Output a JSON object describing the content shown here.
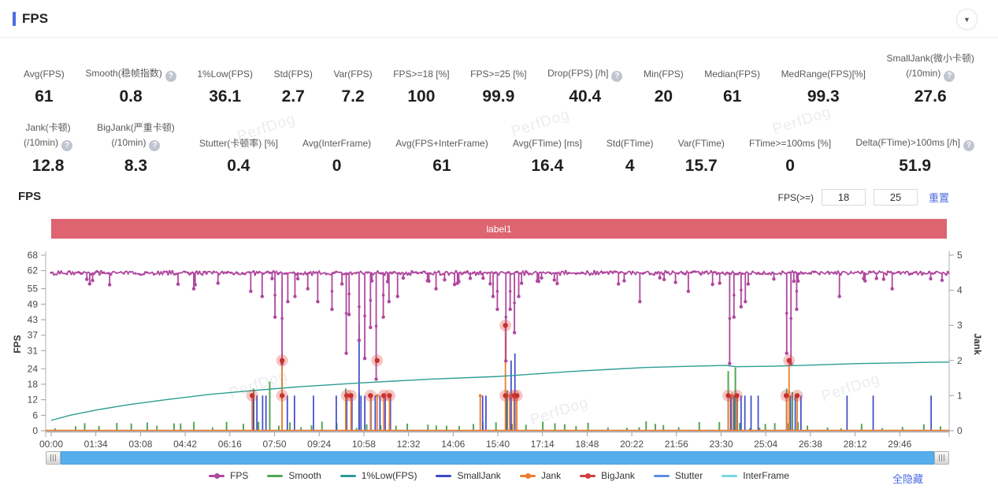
{
  "header": {
    "title": "FPS"
  },
  "watermark": "PerfDog",
  "stats": {
    "row1": [
      {
        "label": "Avg(FPS)",
        "value": "61"
      },
      {
        "label": "Smooth(稳帧指数)",
        "help": true,
        "value": "0.8"
      },
      {
        "label": "1%Low(FPS)",
        "value": "36.1"
      },
      {
        "label": "Std(FPS)",
        "value": "2.7"
      },
      {
        "label": "Var(FPS)",
        "value": "7.2"
      },
      {
        "label": "FPS>=18 [%]",
        "value": "100"
      },
      {
        "label": "FPS>=25 [%]",
        "value": "99.9"
      },
      {
        "label": "Drop(FPS) [/h]",
        "help": true,
        "value": "40.4"
      },
      {
        "label": "Min(FPS)",
        "value": "20"
      },
      {
        "label": "Median(FPS)",
        "value": "61"
      },
      {
        "label": "MedRange(FPS)[%]",
        "value": "99.3"
      },
      {
        "label": "SmallJank(微小卡顿)",
        "label2": "(/10min)",
        "help": true,
        "value": "27.6"
      }
    ],
    "row2": [
      {
        "label": "Jank(卡顿)",
        "label2": "(/10min)",
        "help": true,
        "value": "12.8"
      },
      {
        "label": "BigJank(严重卡顿)",
        "label2": "(/10min)",
        "help": true,
        "value": "8.3"
      },
      {
        "label": "Stutter(卡顿率) [%]",
        "value": "0.4"
      },
      {
        "label": "Avg(InterFrame)",
        "value": "0"
      },
      {
        "label": "Avg(FPS+InterFrame)",
        "value": "61"
      },
      {
        "label": "Avg(FTime) [ms]",
        "value": "16.4"
      },
      {
        "label": "Std(FTime)",
        "value": "4"
      },
      {
        "label": "Var(FTime)",
        "value": "15.7"
      },
      {
        "label": "FTime>=100ms [%]",
        "value": "0"
      },
      {
        "label": "Delta(FTime)>100ms [/h]",
        "help": true,
        "value": "51.9"
      }
    ]
  },
  "chart_section": {
    "title": "FPS",
    "fps_filter_label": "FPS(>=)",
    "threshold1": "18",
    "threshold2": "25",
    "reset_label": "重置",
    "hide_all_label": "全隐藏"
  },
  "chart_data": {
    "type": "line",
    "title": "FPS",
    "banner": "label1",
    "legend_position": "bottom",
    "x_axis": {
      "unit": "mm:ss",
      "domain_seconds": [
        0,
        1890
      ],
      "ticks": [
        {
          "t": 0,
          "label": "00:00"
        },
        {
          "t": 94,
          "label": "01:34"
        },
        {
          "t": 188,
          "label": "03:08"
        },
        {
          "t": 282,
          "label": "04:42"
        },
        {
          "t": 376,
          "label": "06:16"
        },
        {
          "t": 470,
          "label": "07:50"
        },
        {
          "t": 564,
          "label": "09:24"
        },
        {
          "t": 658,
          "label": "10:58"
        },
        {
          "t": 752,
          "label": "12:32"
        },
        {
          "t": 846,
          "label": "14:06"
        },
        {
          "t": 940,
          "label": "15:40"
        },
        {
          "t": 1034,
          "label": "17:14"
        },
        {
          "t": 1128,
          "label": "18:48"
        },
        {
          "t": 1222,
          "label": "20:22"
        },
        {
          "t": 1316,
          "label": "21:56"
        },
        {
          "t": 1410,
          "label": "23:30"
        },
        {
          "t": 1504,
          "label": "25:04"
        },
        {
          "t": 1598,
          "label": "26:38"
        },
        {
          "t": 1692,
          "label": "28:12"
        },
        {
          "t": 1786,
          "label": "29:46"
        }
      ]
    },
    "y_left": {
      "label": "FPS",
      "range": [
        0,
        68
      ],
      "ticks": [
        0,
        6,
        12,
        18,
        24,
        31,
        37,
        43,
        49,
        55,
        62,
        68
      ]
    },
    "y_right": {
      "label": "Jank",
      "range": [
        0,
        5
      ],
      "ticks": [
        0,
        1,
        2,
        3,
        4,
        5
      ]
    },
    "series": [
      {
        "name": "FPS",
        "color": "#b0479e",
        "axis": "left",
        "style": "line-dots",
        "baseline": 61,
        "dips": [
          [
            300,
            55
          ],
          [
            420,
            54
          ],
          [
            445,
            52
          ],
          [
            470,
            44
          ],
          [
            486,
            26
          ],
          [
            497,
            50
          ],
          [
            512,
            52
          ],
          [
            540,
            55
          ],
          [
            560,
            50
          ],
          [
            590,
            47
          ],
          [
            620,
            30
          ],
          [
            628,
            45
          ],
          [
            648,
            35
          ],
          [
            660,
            28
          ],
          [
            673,
            40
          ],
          [
            683,
            20
          ],
          [
            700,
            44
          ],
          [
            712,
            50
          ],
          [
            730,
            52
          ],
          [
            810,
            55
          ],
          [
            930,
            52
          ],
          [
            940,
            47
          ],
          [
            956,
            27
          ],
          [
            965,
            47
          ],
          [
            976,
            38
          ],
          [
            985,
            52
          ],
          [
            1240,
            50
          ],
          [
            1340,
            54
          ],
          [
            1428,
            26
          ],
          [
            1437,
            44
          ],
          [
            1452,
            48
          ],
          [
            1460,
            50
          ],
          [
            1548,
            30
          ],
          [
            1556,
            26
          ],
          [
            1570,
            47
          ],
          [
            1659,
            52
          ],
          [
            1770,
            55
          ]
        ]
      },
      {
        "name": "Smooth",
        "color": "#53a653",
        "axis": "right",
        "style": "bars",
        "spikes": [
          [
            426,
            1.2
          ],
          [
            460,
            1.4
          ],
          [
            620,
            1.2
          ],
          [
            648,
            1.1
          ],
          [
            960,
            1.15
          ],
          [
            1425,
            1.7
          ],
          [
            1440,
            1.8
          ],
          [
            1548,
            1.2
          ],
          [
            1560,
            1.1
          ]
        ]
      },
      {
        "name": "1%Low(FPS)",
        "color": "#2e9d94",
        "axis": "left",
        "style": "line",
        "points": [
          [
            0,
            4
          ],
          [
            40,
            6
          ],
          [
            94,
            8
          ],
          [
            160,
            10
          ],
          [
            240,
            12
          ],
          [
            330,
            14
          ],
          [
            420,
            15.5
          ],
          [
            520,
            17
          ],
          [
            650,
            18.5
          ],
          [
            800,
            20
          ],
          [
            940,
            21
          ],
          [
            1100,
            23
          ],
          [
            1250,
            24.5
          ],
          [
            1350,
            25
          ],
          [
            1420,
            25.3
          ],
          [
            1440,
            24.8
          ],
          [
            1520,
            25
          ],
          [
            1560,
            25.2
          ],
          [
            1700,
            26
          ],
          [
            1850,
            26.5
          ],
          [
            1890,
            26.6
          ]
        ]
      },
      {
        "name": "SmallJank",
        "color": "#3c49cb",
        "axis": "right",
        "style": "spikes",
        "spikes": [
          [
            426,
            1
          ],
          [
            433,
            1
          ],
          [
            445,
            1
          ],
          [
            452,
            1
          ],
          [
            486,
            4.1
          ],
          [
            497,
            1
          ],
          [
            512,
            1
          ],
          [
            552,
            1
          ],
          [
            600,
            1
          ],
          [
            622,
            1
          ],
          [
            633,
            1
          ],
          [
            648,
            3.0
          ],
          [
            652,
            1
          ],
          [
            660,
            1
          ],
          [
            673,
            1
          ],
          [
            682,
            1
          ],
          [
            692,
            1
          ],
          [
            703,
            1
          ],
          [
            714,
            1
          ],
          [
            908,
            1
          ],
          [
            915,
            1
          ],
          [
            958,
            1
          ],
          [
            968,
            2.0
          ],
          [
            976,
            2.2
          ],
          [
            1425,
            1
          ],
          [
            1430,
            1
          ],
          [
            1437,
            1
          ],
          [
            1444,
            1
          ],
          [
            1452,
            1
          ],
          [
            1460,
            1
          ],
          [
            1473,
            1
          ],
          [
            1488,
            1
          ],
          [
            1548,
            1
          ],
          [
            1556,
            1
          ],
          [
            1566,
            1
          ],
          [
            1578,
            1
          ],
          [
            1675,
            1
          ],
          [
            1730,
            1
          ],
          [
            1852,
            1
          ]
        ]
      },
      {
        "name": "Jank",
        "color": "#ee7c30",
        "axis": "right",
        "style": "spikes-dot",
        "baseline": 0,
        "spikes": [
          [
            423,
            1
          ],
          [
            486,
            2
          ],
          [
            620,
            1
          ],
          [
            631,
            1
          ],
          [
            672,
            1
          ],
          [
            686,
            1
          ],
          [
            700,
            1
          ],
          [
            712,
            1
          ],
          [
            903,
            1
          ],
          [
            956,
            3
          ],
          [
            965,
            1
          ],
          [
            974,
            1
          ],
          [
            980,
            1
          ],
          [
            1425,
            1
          ],
          [
            1433,
            1
          ],
          [
            1443,
            1
          ],
          [
            1548,
            1
          ],
          [
            1553,
            2
          ],
          [
            1570,
            1
          ]
        ]
      },
      {
        "name": "BigJank",
        "color": "#d43f3a",
        "axis": "right",
        "style": "markers",
        "markers": [
          [
            423,
            1
          ],
          [
            486,
            1
          ],
          [
            486,
            2
          ],
          [
            622,
            1
          ],
          [
            631,
            1
          ],
          [
            672,
            1
          ],
          [
            686,
            2
          ],
          [
            700,
            1
          ],
          [
            712,
            1
          ],
          [
            956,
            3
          ],
          [
            956,
            1
          ],
          [
            974,
            1
          ],
          [
            980,
            1
          ],
          [
            1425,
            1
          ],
          [
            1443,
            1
          ],
          [
            1547,
            1
          ],
          [
            1553,
            2
          ],
          [
            1570,
            1
          ]
        ]
      },
      {
        "name": "Stutter",
        "color": "#5e8fe0",
        "axis": "right",
        "style": "line",
        "baseline": 0
      },
      {
        "name": "InterFrame",
        "color": "#7cd6e6",
        "axis": "right",
        "style": "line",
        "baseline": 0
      }
    ]
  }
}
